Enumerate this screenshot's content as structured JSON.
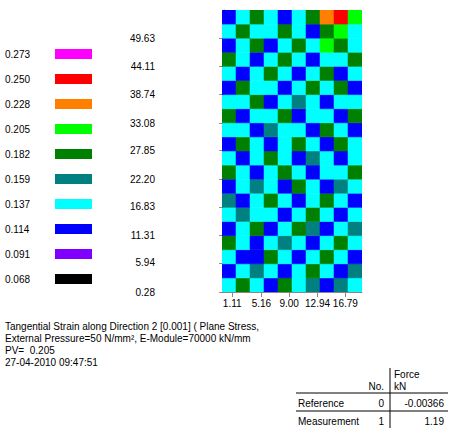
{
  "chart_data": {
    "type": "heatmap",
    "caption": "Tangential Strain along Direction 2 [0.001] ( Plane Stress, External Pressure=50 N/mm², E-Module=70000 kN/mm",
    "pv": "PV=  0.205",
    "timestamp": "27-04-2010 09:47:51",
    "xlim": [
      -0.3,
      19.1
    ],
    "ylim": [
      0.28,
      55.1
    ],
    "xticks": [
      1.11,
      5.16,
      {
        "value": 9,
        "label": "9.00"
      },
      12.94,
      16.79
    ],
    "yticks": [
      0.28,
      5.94,
      11.31,
      16.83,
      {
        "value": 22.2,
        "label": "22.20"
      },
      27.85,
      33.08,
      38.74,
      44.11,
      49.63
    ],
    "colorbar": {
      "range": [
        0.068,
        0.273
      ],
      "levels": [
        {
          "value": 0.068,
          "color": "#000000"
        },
        {
          "value": 0.091,
          "color": "#8000ff"
        },
        {
          "value": 0.114,
          "color": "#0000ff"
        },
        {
          "value": 0.137,
          "color": "#00ffff"
        },
        {
          "value": 0.159,
          "color": "#008080"
        },
        {
          "value": 0.182,
          "color": "#008000"
        },
        {
          "value": 0.205,
          "color": "#00ff00"
        },
        {
          "value": 0.228,
          "color": "#ff8000"
        },
        {
          "value": 0.25,
          "label": "0.250",
          "color": "#ff0000"
        },
        {
          "value": 0.273,
          "color": "#ff00ff"
        }
      ]
    },
    "cells": {
      "x": [
        0.67,
        2.61,
        4.55,
        6.49,
        8.43,
        10.37,
        12.31,
        14.25,
        16.19,
        18.13
      ],
      "y": [
        1.65,
        4.39,
        7.13,
        9.87,
        12.61,
        15.36,
        18.1,
        20.84,
        23.58,
        26.32,
        29.06,
        31.8,
        34.54,
        37.28,
        40.02,
        42.77,
        45.51,
        48.25,
        50.99,
        53.73
      ],
      "values": [
        [
          0.14,
          0.19,
          0.15,
          0.12,
          0.19,
          0.14,
          0.16,
          0.12,
          0.18,
          0.14
        ],
        [
          0.12,
          0.14,
          0.18,
          0.14,
          0.12,
          0.15,
          0.19,
          0.14,
          0.12,
          0.16
        ],
        [
          0.15,
          0.12,
          0.13,
          0.19,
          0.15,
          0.12,
          0.14,
          0.19,
          0.15,
          0.12
        ],
        [
          0.19,
          0.15,
          0.12,
          0.14,
          0.18,
          0.15,
          0.12,
          0.14,
          0.19,
          0.14
        ],
        [
          0.12,
          0.14,
          0.19,
          0.12,
          0.14,
          0.19,
          0.16,
          0.12,
          0.14,
          0.18
        ],
        [
          0.14,
          0.18,
          0.14,
          0.15,
          0.12,
          0.14,
          0.19,
          0.15,
          0.12,
          0.14
        ],
        [
          0.16,
          0.12,
          0.14,
          0.19,
          0.14,
          0.12,
          0.14,
          0.19,
          0.14,
          0.12
        ],
        [
          0.12,
          0.14,
          0.18,
          0.14,
          0.12,
          0.19,
          0.15,
          0.12,
          0.18,
          0.15
        ],
        [
          0.19,
          0.15,
          0.12,
          0.14,
          0.19,
          0.14,
          0.12,
          0.14,
          0.15,
          0.19
        ],
        [
          0.14,
          0.12,
          0.14,
          0.19,
          0.15,
          0.12,
          0.18,
          0.15,
          0.12,
          0.14
        ],
        [
          0.12,
          0.19,
          0.15,
          0.12,
          0.14,
          0.19,
          0.14,
          0.12,
          0.19,
          0.15
        ],
        [
          0.15,
          0.14,
          0.12,
          0.18,
          0.14,
          0.15,
          0.12,
          0.19,
          0.14,
          0.12
        ],
        [
          0.19,
          0.12,
          0.14,
          0.15,
          0.19,
          0.12,
          0.14,
          0.15,
          0.12,
          0.19
        ],
        [
          0.14,
          0.15,
          0.19,
          0.12,
          0.14,
          0.18,
          0.15,
          0.12,
          0.14,
          0.15
        ],
        [
          0.12,
          0.19,
          0.14,
          0.14,
          0.12,
          0.15,
          0.19,
          0.14,
          0.19,
          0.12
        ],
        [
          0.15,
          0.12,
          0.15,
          0.19,
          0.14,
          0.12,
          0.14,
          0.19,
          0.12,
          0.14
        ],
        [
          0.19,
          0.14,
          0.12,
          0.14,
          0.19,
          0.15,
          0.12,
          0.14,
          0.15,
          0.19
        ],
        [
          0.12,
          0.15,
          0.19,
          0.12,
          0.14,
          0.19,
          0.15,
          0.21,
          0.19,
          0.14
        ],
        [
          0.14,
          0.19,
          0.14,
          0.15,
          0.19,
          0.14,
          0.12,
          0.19,
          0.21,
          0.15
        ],
        [
          0.12,
          0.14,
          0.19,
          0.14,
          0.12,
          0.15,
          0.19,
          0.23,
          0.26,
          0.21
        ]
      ]
    },
    "table": {
      "columns": [
        {
          "label": "No."
        },
        {
          "label": "Force",
          "unit": "kN"
        }
      ],
      "rows": [
        {
          "name": "Reference",
          "no": 0,
          "force": -0.00366
        },
        {
          "name": "Measurement",
          "no": 1,
          "force": 1.19
        }
      ]
    }
  }
}
